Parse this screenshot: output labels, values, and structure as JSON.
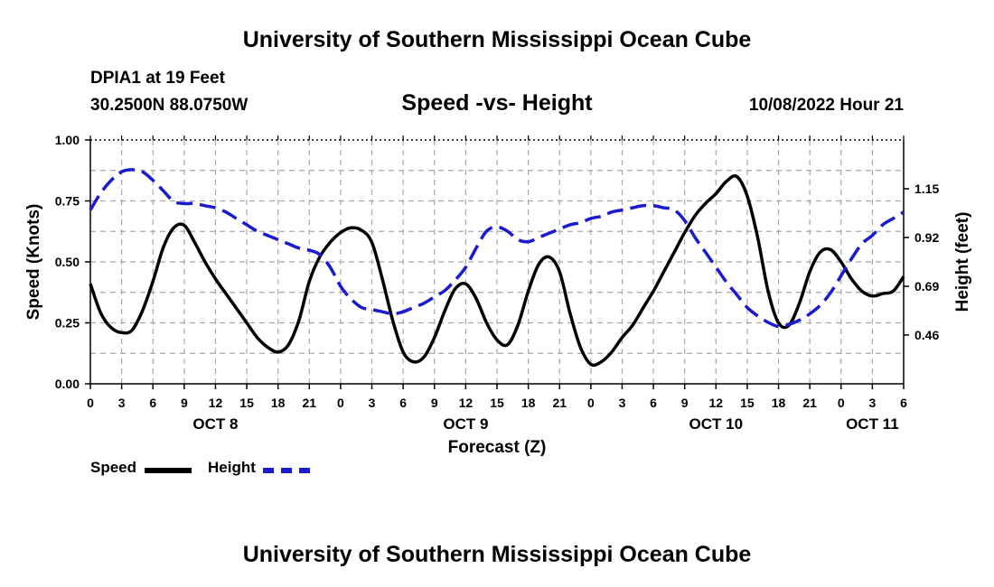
{
  "header": {
    "main_title": "University of Southern Mississippi Ocean Cube",
    "station": "DPIA1 at 19 Feet",
    "coordinates": "30.2500N  88.0750W",
    "chart_title": "Speed -vs- Height",
    "date_hour": "10/08/2022 Hour 21"
  },
  "footer": {
    "title": "University of Southern Mississippi Ocean Cube"
  },
  "legend": {
    "speed_label": "Speed",
    "height_label": "Height"
  },
  "colors": {
    "speed": "#000000",
    "height": "#1a1ad0",
    "grid": "#a8a8a8"
  },
  "chart_data": {
    "type": "line",
    "title": "Speed -vs- Height",
    "xlabel": "Forecast (Z)",
    "ylabel": "Speed (Knots)",
    "y2label": "Height (feet)",
    "x_unit": "hours since OCT 8 00Z",
    "xlim": [
      0,
      78
    ],
    "ylim": [
      0,
      1.0
    ],
    "y2lim": [
      0.23,
      1.38
    ],
    "x_ticks": [
      0,
      3,
      6,
      9,
      12,
      15,
      18,
      21,
      24,
      27,
      30,
      33,
      36,
      39,
      42,
      45,
      48,
      51,
      54,
      57,
      60,
      63,
      66,
      69,
      72,
      75,
      78
    ],
    "x_tick_labels": [
      "0",
      "3",
      "6",
      "9",
      "12",
      "15",
      "18",
      "21",
      "0",
      "3",
      "6",
      "9",
      "12",
      "15",
      "18",
      "21",
      "0",
      "3",
      "6",
      "9",
      "12",
      "15",
      "18",
      "21",
      "0",
      "3",
      "6"
    ],
    "day_labels": [
      {
        "x": 12,
        "label": "OCT 8"
      },
      {
        "x": 36,
        "label": "OCT 9"
      },
      {
        "x": 60,
        "label": "OCT 10"
      },
      {
        "x": 75,
        "label": "OCT 11"
      }
    ],
    "y_ticks": [
      0.0,
      0.25,
      0.5,
      0.75,
      1.0
    ],
    "y_tick_labels": [
      "0.00",
      "0.25",
      "0.50",
      "0.75",
      "1.00"
    ],
    "y2_ticks": [
      0.46,
      0.69,
      0.92,
      1.15
    ],
    "y2_tick_labels": [
      "0.46",
      "0.69",
      "0.92",
      "1.15"
    ],
    "grid": true,
    "series": [
      {
        "name": "Speed",
        "axis": "left",
        "style": "solid",
        "x": [
          0,
          1,
          2,
          3,
          4,
          5,
          6,
          7,
          8,
          9,
          10,
          11,
          12,
          13,
          14,
          15,
          16,
          17,
          18,
          19,
          20,
          21,
          22,
          23,
          24,
          25,
          26,
          27,
          28,
          29,
          30,
          31,
          32,
          33,
          34,
          35,
          36,
          37,
          38,
          39,
          40,
          41,
          42,
          43,
          44,
          45,
          46,
          47,
          48,
          49,
          50,
          51,
          52,
          53,
          54,
          55,
          56,
          57,
          58,
          59,
          60,
          61,
          62,
          63,
          64,
          65,
          66,
          67,
          68,
          69,
          70,
          71,
          72,
          73,
          74,
          75,
          76,
          77,
          78
        ],
        "values": [
          0.41,
          0.29,
          0.23,
          0.21,
          0.22,
          0.3,
          0.42,
          0.56,
          0.64,
          0.65,
          0.58,
          0.5,
          0.43,
          0.37,
          0.31,
          0.25,
          0.19,
          0.15,
          0.13,
          0.16,
          0.26,
          0.42,
          0.52,
          0.58,
          0.62,
          0.64,
          0.63,
          0.58,
          0.43,
          0.26,
          0.13,
          0.09,
          0.11,
          0.19,
          0.3,
          0.39,
          0.41,
          0.35,
          0.25,
          0.18,
          0.16,
          0.24,
          0.38,
          0.49,
          0.52,
          0.46,
          0.29,
          0.15,
          0.08,
          0.09,
          0.13,
          0.19,
          0.24,
          0.31,
          0.38,
          0.46,
          0.54,
          0.62,
          0.69,
          0.74,
          0.78,
          0.83,
          0.85,
          0.77,
          0.6,
          0.38,
          0.25,
          0.24,
          0.33,
          0.46,
          0.54,
          0.55,
          0.5,
          0.43,
          0.38,
          0.36,
          0.37,
          0.38,
          0.44
        ]
      },
      {
        "name": "Height",
        "axis": "right",
        "style": "dashed",
        "x": [
          0,
          1,
          2,
          3,
          4,
          5,
          6,
          7,
          8,
          9,
          10,
          11,
          12,
          13,
          14,
          15,
          16,
          17,
          18,
          19,
          20,
          21,
          22,
          23,
          24,
          25,
          26,
          27,
          28,
          29,
          30,
          31,
          32,
          33,
          34,
          35,
          36,
          37,
          38,
          39,
          40,
          41,
          42,
          43,
          44,
          45,
          46,
          47,
          48,
          49,
          50,
          51,
          52,
          53,
          54,
          55,
          56,
          57,
          58,
          59,
          60,
          61,
          62,
          63,
          64,
          65,
          66,
          67,
          68,
          69,
          70,
          71,
          72,
          73,
          74,
          75,
          76,
          77,
          78
        ],
        "values": [
          1.05,
          1.13,
          1.19,
          1.23,
          1.24,
          1.23,
          1.19,
          1.14,
          1.09,
          1.08,
          1.08,
          1.07,
          1.06,
          1.04,
          1.01,
          0.98,
          0.95,
          0.93,
          0.91,
          0.89,
          0.87,
          0.86,
          0.84,
          0.78,
          0.69,
          0.63,
          0.59,
          0.58,
          0.57,
          0.56,
          0.57,
          0.59,
          0.61,
          0.64,
          0.67,
          0.72,
          0.78,
          0.87,
          0.95,
          0.97,
          0.95,
          0.91,
          0.9,
          0.92,
          0.94,
          0.96,
          0.98,
          0.99,
          1.01,
          1.02,
          1.04,
          1.05,
          1.06,
          1.07,
          1.07,
          1.06,
          1.05,
          1.0,
          0.92,
          0.85,
          0.78,
          0.71,
          0.65,
          0.59,
          0.55,
          0.52,
          0.5,
          0.51,
          0.53,
          0.56,
          0.6,
          0.66,
          0.74,
          0.82,
          0.89,
          0.93,
          0.98,
          1.01,
          1.04
        ]
      }
    ]
  }
}
